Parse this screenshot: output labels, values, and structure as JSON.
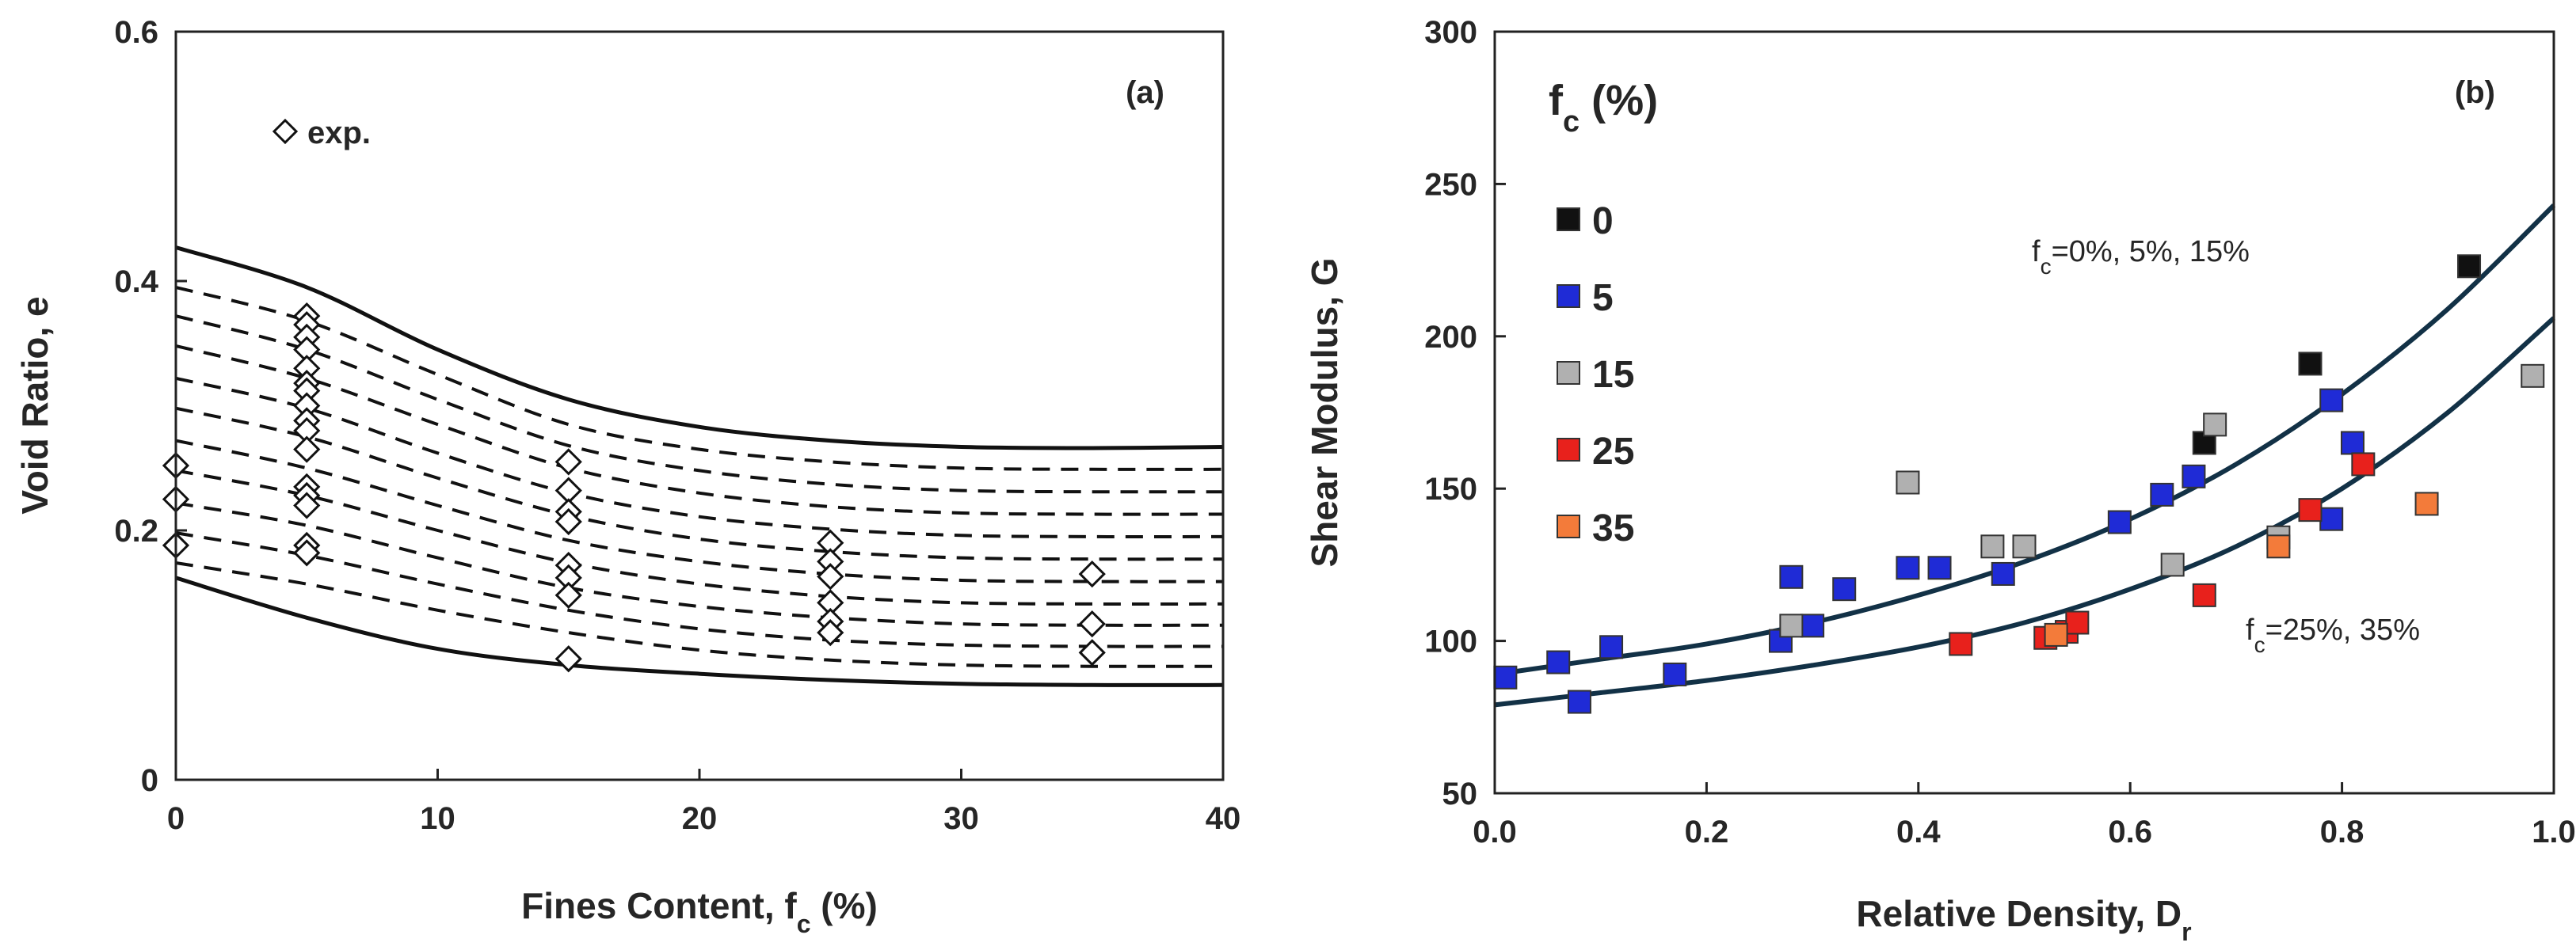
{
  "chart_data": [
    {
      "type": "line",
      "panel_label": "(a)",
      "xlabel": "Fines Content, ",
      "xlabel_sub": "c",
      "xlabel_var": "f",
      "xlabel_tail": " (%)",
      "ylabel": "Void Ratio, e",
      "xlim": [
        0,
        40
      ],
      "ylim": [
        0,
        0.6
      ],
      "x_ticks": [
        0,
        10,
        20,
        30,
        40
      ],
      "x_tick_labels": [
        "0",
        "10",
        "20",
        "30",
        "40"
      ],
      "y_ticks": [
        0,
        0.2,
        0.4,
        0.6
      ],
      "y_tick_labels": [
        "0",
        "0.2",
        "0.4",
        "0.6"
      ],
      "legend": "exp.",
      "legend_point": {
        "x": 4.2,
        "y": 0.52
      },
      "curve_x": [
        0,
        5,
        10,
        15,
        20,
        25,
        30,
        35,
        40
      ],
      "series": [
        {
          "name": "upper-bound",
          "style": "solid",
          "values": [
            0.427,
            0.395,
            0.345,
            0.305,
            0.283,
            0.272,
            0.267,
            0.266,
            0.267
          ]
        },
        {
          "name": "lower-bound",
          "style": "solid",
          "values": [
            0.162,
            0.13,
            0.105,
            0.092,
            0.085,
            0.08,
            0.077,
            0.076,
            0.076
          ]
        },
        {
          "name": "contour-1",
          "style": "dashed",
          "values": [
            0.395,
            0.368,
            0.325,
            0.285,
            0.265,
            0.255,
            0.25,
            0.249,
            0.249
          ]
        },
        {
          "name": "contour-2",
          "style": "dashed",
          "values": [
            0.372,
            0.345,
            0.305,
            0.268,
            0.248,
            0.237,
            0.232,
            0.231,
            0.231
          ]
        },
        {
          "name": "contour-3",
          "style": "dashed",
          "values": [
            0.348,
            0.322,
            0.285,
            0.25,
            0.23,
            0.219,
            0.214,
            0.213,
            0.213
          ]
        },
        {
          "name": "contour-4",
          "style": "dashed",
          "values": [
            0.322,
            0.298,
            0.262,
            0.23,
            0.211,
            0.201,
            0.196,
            0.195,
            0.195
          ]
        },
        {
          "name": "contour-5",
          "style": "dashed",
          "values": [
            0.298,
            0.275,
            0.242,
            0.212,
            0.193,
            0.183,
            0.178,
            0.177,
            0.177
          ]
        },
        {
          "name": "contour-6",
          "style": "dashed",
          "values": [
            0.272,
            0.25,
            0.22,
            0.192,
            0.175,
            0.165,
            0.16,
            0.159,
            0.159
          ]
        },
        {
          "name": "contour-7",
          "style": "dashed",
          "values": [
            0.248,
            0.228,
            0.2,
            0.174,
            0.157,
            0.147,
            0.142,
            0.141,
            0.141
          ]
        },
        {
          "name": "contour-8",
          "style": "dashed",
          "values": [
            0.222,
            0.204,
            0.178,
            0.154,
            0.139,
            0.13,
            0.125,
            0.124,
            0.124
          ]
        },
        {
          "name": "contour-9",
          "style": "dashed",
          "values": [
            0.198,
            0.18,
            0.157,
            0.136,
            0.121,
            0.112,
            0.108,
            0.107,
            0.107
          ]
        },
        {
          "name": "contour-10",
          "style": "dashed",
          "values": [
            0.174,
            0.157,
            0.136,
            0.118,
            0.104,
            0.096,
            0.092,
            0.091,
            0.091
          ]
        }
      ],
      "points": [
        {
          "x": 0,
          "y": 0.252
        },
        {
          "x": 0,
          "y": 0.225
        },
        {
          "x": 0,
          "y": 0.188
        },
        {
          "x": 5,
          "y": 0.372
        },
        {
          "x": 5,
          "y": 0.365
        },
        {
          "x": 5,
          "y": 0.355
        },
        {
          "x": 5,
          "y": 0.345
        },
        {
          "x": 5,
          "y": 0.33
        },
        {
          "x": 5,
          "y": 0.318
        },
        {
          "x": 5,
          "y": 0.312
        },
        {
          "x": 5,
          "y": 0.3
        },
        {
          "x": 5,
          "y": 0.288
        },
        {
          "x": 5,
          "y": 0.28
        },
        {
          "x": 5,
          "y": 0.265
        },
        {
          "x": 5,
          "y": 0.235
        },
        {
          "x": 5,
          "y": 0.228
        },
        {
          "x": 5,
          "y": 0.22
        },
        {
          "x": 5,
          "y": 0.188
        },
        {
          "x": 5,
          "y": 0.182
        },
        {
          "x": 15,
          "y": 0.255
        },
        {
          "x": 15,
          "y": 0.232
        },
        {
          "x": 15,
          "y": 0.215
        },
        {
          "x": 15,
          "y": 0.207
        },
        {
          "x": 15,
          "y": 0.172
        },
        {
          "x": 15,
          "y": 0.162
        },
        {
          "x": 15,
          "y": 0.148
        },
        {
          "x": 15,
          "y": 0.097
        },
        {
          "x": 25,
          "y": 0.19
        },
        {
          "x": 25,
          "y": 0.175
        },
        {
          "x": 25,
          "y": 0.163
        },
        {
          "x": 25,
          "y": 0.142
        },
        {
          "x": 25,
          "y": 0.127
        },
        {
          "x": 25,
          "y": 0.118
        },
        {
          "x": 35,
          "y": 0.165
        },
        {
          "x": 35,
          "y": 0.125
        },
        {
          "x": 35,
          "y": 0.102
        }
      ]
    },
    {
      "type": "scatter",
      "panel_label": "(b)",
      "xlabel": "Relative Density, ",
      "xlabel_var": "D",
      "xlabel_sub": "r",
      "ylabel": "Shear Modulus, G",
      "xlim": [
        0,
        1.0
      ],
      "ylim": [
        50,
        300
      ],
      "x_ticks": [
        0,
        0.2,
        0.4,
        0.6,
        0.8,
        1.0
      ],
      "x_tick_labels": [
        "0.0",
        "0.2",
        "0.4",
        "0.6",
        "0.8",
        "1.0"
      ],
      "y_ticks": [
        50,
        100,
        150,
        200,
        250,
        300
      ],
      "y_tick_labels": [
        "50",
        "100",
        "150",
        "200",
        "250",
        "300"
      ],
      "legend_title": "f",
      "legend_title_sub": "c",
      "legend_title_tail": " (%)",
      "series": [
        {
          "name": "0",
          "color": "#111111",
          "points": [
            [
              0.67,
              165
            ],
            [
              0.77,
              191
            ],
            [
              0.92,
              223
            ]
          ]
        },
        {
          "name": "5",
          "color": "#1f2bd6",
          "points": [
            [
              0.01,
              88
            ],
            [
              0.06,
              93
            ],
            [
              0.08,
              80
            ],
            [
              0.11,
              98
            ],
            [
              0.17,
              89
            ],
            [
              0.27,
              100
            ],
            [
              0.28,
              121
            ],
            [
              0.3,
              105
            ],
            [
              0.33,
              117
            ],
            [
              0.39,
              124
            ],
            [
              0.42,
              124
            ],
            [
              0.48,
              122
            ],
            [
              0.59,
              139
            ],
            [
              0.63,
              148
            ],
            [
              0.66,
              154
            ],
            [
              0.79,
              179
            ],
            [
              0.79,
              140
            ],
            [
              0.81,
              165
            ]
          ]
        },
        {
          "name": "15",
          "color": "#b0b0b0",
          "points": [
            [
              0.28,
              105
            ],
            [
              0.39,
              152
            ],
            [
              0.47,
              131
            ],
            [
              0.5,
              131
            ],
            [
              0.64,
              125
            ],
            [
              0.68,
              171
            ],
            [
              0.74,
              134
            ],
            [
              0.98,
              187
            ]
          ]
        },
        {
          "name": "25",
          "color": "#e8211c",
          "points": [
            [
              0.44,
              99
            ],
            [
              0.52,
              101
            ],
            [
              0.54,
              103
            ],
            [
              0.55,
              106
            ],
            [
              0.67,
              115
            ],
            [
              0.77,
              143
            ],
            [
              0.82,
              158
            ]
          ]
        },
        {
          "name": "35",
          "color": "#f37b3a",
          "points": [
            [
              0.53,
              102
            ],
            [
              0.74,
              131
            ],
            [
              0.88,
              145
            ]
          ]
        }
      ],
      "fit_curves": [
        {
          "name": "fit-fc-0-5-15",
          "label": "f",
          "label_sub": "c",
          "label_tail": "=0%, 5%, 15%",
          "x": [
            0,
            0.1,
            0.2,
            0.3,
            0.4,
            0.5,
            0.6,
            0.7,
            0.8,
            0.9,
            1.0
          ],
          "y": [
            89,
            94,
            99,
            106,
            115,
            126,
            140,
            158,
            181,
            209,
            243
          ]
        },
        {
          "name": "fit-fc-25-35",
          "label": "f",
          "label_sub": "c",
          "label_tail": "=25%, 35%",
          "x": [
            0,
            0.1,
            0.2,
            0.3,
            0.4,
            0.5,
            0.6,
            0.7,
            0.8,
            0.9,
            1.0
          ],
          "y": [
            79,
            83,
            87,
            92,
            98,
            106,
            117,
            131,
            150,
            175,
            206
          ]
        }
      ]
    }
  ]
}
